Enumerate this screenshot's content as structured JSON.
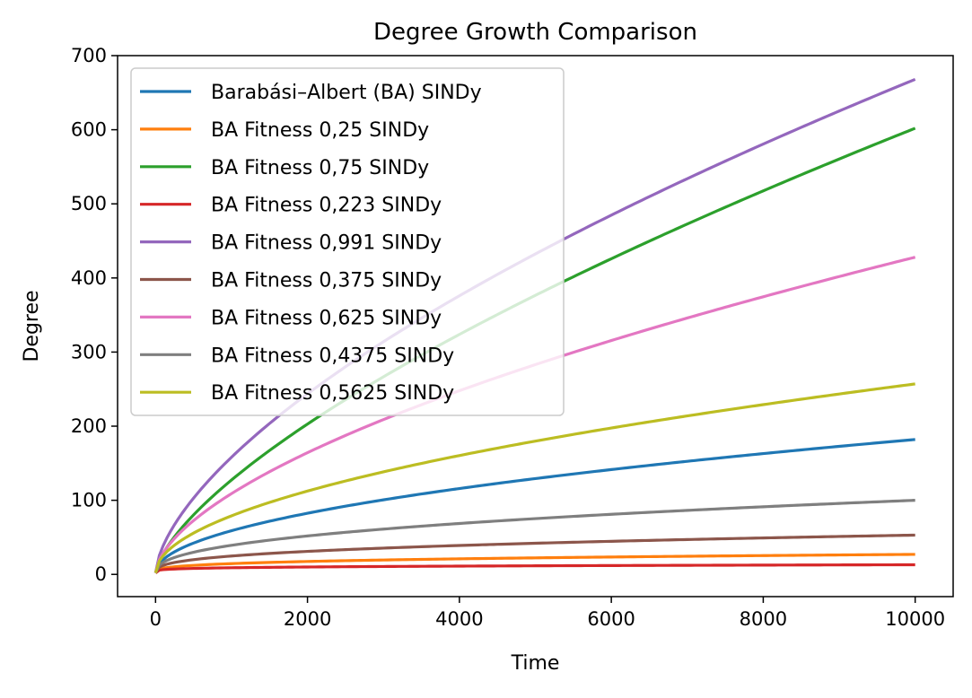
{
  "chart_data": {
    "type": "line",
    "title": "Degree Growth Comparison",
    "xlabel": "Time",
    "ylabel": "Degree",
    "xlim": [
      -500,
      10500
    ],
    "ylim": [
      -30,
      700
    ],
    "xticks": [
      0,
      2000,
      4000,
      6000,
      8000,
      10000
    ],
    "yticks": [
      0,
      100,
      200,
      300,
      400,
      500,
      600,
      700
    ],
    "grid": false,
    "legend_position": "top-left",
    "x": [
      0,
      100,
      250,
      500,
      1000,
      1500,
      2000,
      2500,
      3000,
      3500,
      4000,
      4500,
      5000,
      5500,
      6000,
      6500,
      7000,
      7500,
      8000,
      8500,
      9000,
      9500,
      10000
    ],
    "series": [
      {
        "name": "Barabási–Albert (BA) SINDy",
        "color": "#1f77b4",
        "start": 2,
        "end": 182,
        "exponent": 0.5
      },
      {
        "name": "BA Fitness 0,25 SINDy",
        "color": "#ff7f0e",
        "start": 2,
        "end": 27,
        "exponent": 0.3
      },
      {
        "name": "BA Fitness 0,75 SINDy",
        "color": "#2ca02c",
        "start": 2,
        "end": 602,
        "exponent": 0.68
      },
      {
        "name": "BA Fitness 0,223 SINDy",
        "color": "#d62728",
        "start": 2,
        "end": 13,
        "exponent": 0.2
      },
      {
        "name": "BA Fitness 0,991 SINDy",
        "color": "#9467bd",
        "start": 2,
        "end": 668,
        "exponent": 0.63
      },
      {
        "name": "BA Fitness 0,375 SINDy",
        "color": "#8c564b",
        "start": 2,
        "end": 53,
        "exponent": 0.35
      },
      {
        "name": "BA Fitness 0,625 SINDy",
        "color": "#e377c2",
        "start": 2,
        "end": 428,
        "exponent": 0.6
      },
      {
        "name": "BA Fitness 0,4375 SINDy",
        "color": "#7f7f7f",
        "start": 2,
        "end": 100,
        "exponent": 0.42
      },
      {
        "name": "BA Fitness 0,5625 SINDy",
        "color": "#bcbd22",
        "start": 2,
        "end": 257,
        "exponent": 0.52
      }
    ]
  }
}
